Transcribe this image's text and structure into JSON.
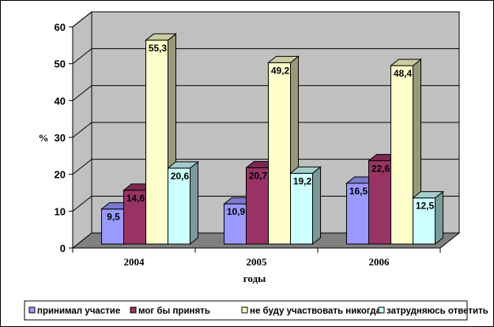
{
  "chart_data": {
    "type": "bar",
    "categories": [
      "2004",
      "2005",
      "2006"
    ],
    "series": [
      {
        "name": "принимал участие",
        "values": [
          9.5,
          10.9,
          16.5
        ],
        "color": "#9999ff"
      },
      {
        "name": "мог бы принять",
        "values": [
          14.6,
          20.7,
          22.6
        ],
        "color": "#993366"
      },
      {
        "name": "не буду участвовать никогда",
        "values": [
          55.3,
          49.2,
          48.4
        ],
        "color": "#ffffcc"
      },
      {
        "name": "затрудняюсь ответить",
        "values": [
          20.6,
          19.2,
          12.5
        ],
        "color": "#ccffff"
      }
    ],
    "value_labels": [
      [
        "9,5",
        "10,9",
        "16,5"
      ],
      [
        "14,6",
        "20,7",
        "22,6"
      ],
      [
        "55,3",
        "49,2",
        "48,4"
      ],
      [
        "20,6",
        "19,2",
        "12,5"
      ]
    ],
    "xlabel": "годы",
    "ylabel": "%",
    "ylim": [
      0,
      60
    ],
    "yticks": [
      "0",
      "10",
      "20",
      "30",
      "40",
      "50",
      "60"
    ],
    "grid": true,
    "legend_position": "bottom",
    "wall_color": "#c0c0c0",
    "floor_color": "#808080"
  }
}
